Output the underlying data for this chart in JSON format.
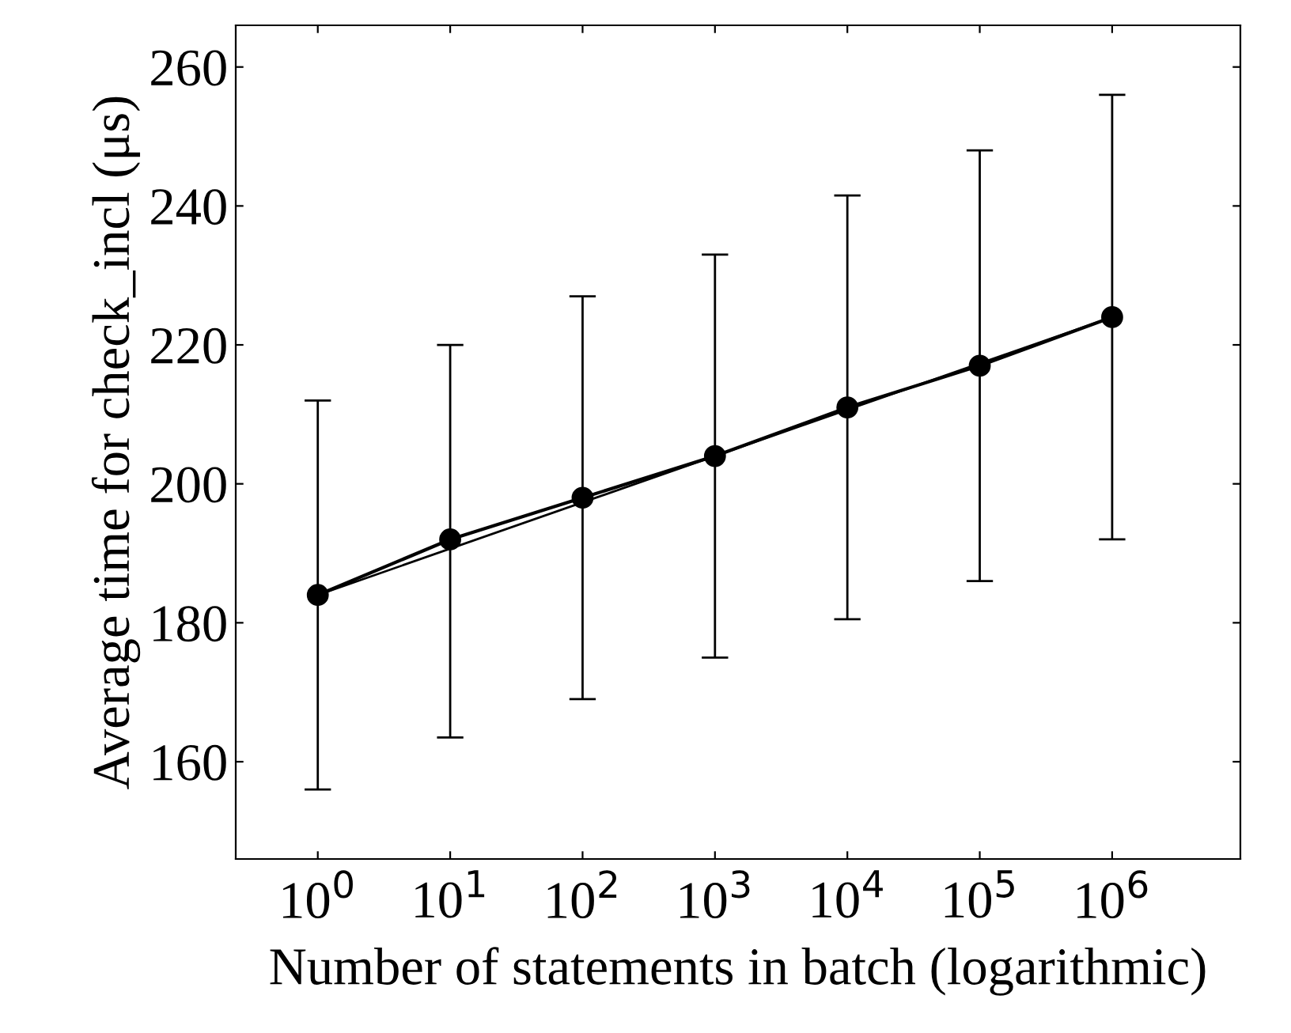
{
  "chart_data": {
    "type": "line",
    "xlabel": "Number of statements in batch (logarithmic)",
    "ylabel": "Average time for check_incl (μs)",
    "log": "x",
    "xlim": [
      0.24,
      9300000
    ],
    "ylim": [
      146,
      266
    ],
    "xticks": [
      {
        "value": 1,
        "label": "10$^{0}$"
      },
      {
        "value": 10,
        "label": "10$^{1}$"
      },
      {
        "value": 100,
        "label": "10$^{2}$"
      },
      {
        "value": 1000,
        "label": "10$^{3}$"
      },
      {
        "value": 10000,
        "label": "10$^{4}$"
      },
      {
        "value": 100000,
        "label": "10$^{5}$"
      },
      {
        "value": 1000000,
        "label": "10$^{6}$"
      }
    ],
    "yticks": [
      160,
      180,
      200,
      220,
      240,
      260
    ],
    "grid": false,
    "legend": false,
    "marker": "circle",
    "line_style": "solid",
    "series": [
      {
        "color": "#000000",
        "x": [
          1,
          10,
          100,
          1000,
          10000,
          100000,
          1000000
        ],
        "values": [
          184,
          192,
          198,
          204,
          211,
          217,
          224
        ],
        "errors": [
          [
            156,
            212
          ],
          [
            163.5,
            220
          ],
          [
            169,
            227
          ],
          [
            175,
            233
          ],
          [
            180.5,
            241.5
          ],
          [
            186,
            248
          ],
          [
            192,
            256
          ]
        ]
      },
      {
        "type": "line",
        "color": "#000000",
        "marker": "none",
        "x": [
          1,
          1000000
        ],
        "values": [
          184,
          224
        ]
      }
    ]
  }
}
